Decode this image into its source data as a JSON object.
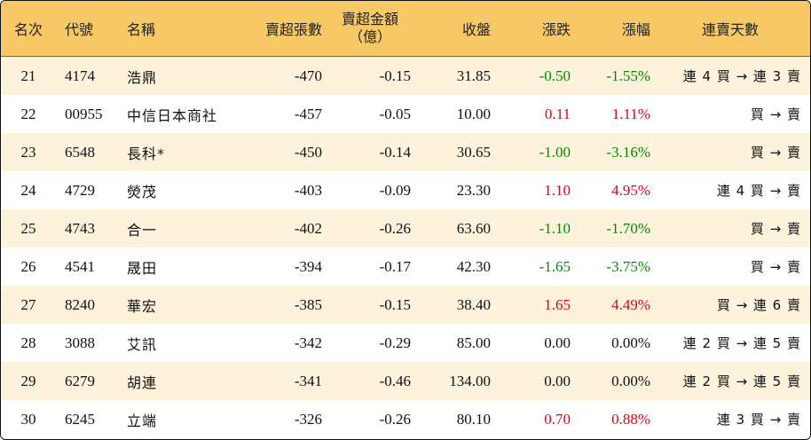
{
  "headers": {
    "rank": "名次",
    "code": "代號",
    "name": "名稱",
    "net_sell_lots": "賣超張數",
    "net_sell_amount_line1": "賣超金額",
    "net_sell_amount_line2": "（億）",
    "close": "收盤",
    "change": "漲跌",
    "change_pct": "漲幅",
    "streak": "連賣天數"
  },
  "colors": {
    "header_bg": "#f7c866",
    "stripe_bg": "#fdf3dd",
    "up": "#e0001b",
    "down": "#008a00"
  },
  "rows": [
    {
      "rank": "21",
      "code": "4174",
      "name": "浩鼎",
      "lots": "-470",
      "amount": "-0.15",
      "close": "31.85",
      "change": "-0.50",
      "pct": "-1.55%",
      "streak": "連 4 買 → 連 3 賣",
      "dir": "down"
    },
    {
      "rank": "22",
      "code": "00955",
      "name": "中信日本商社",
      "lots": "-457",
      "amount": "-0.05",
      "close": "10.00",
      "change": "0.11",
      "pct": "1.11%",
      "streak": "買 → 賣",
      "dir": "up"
    },
    {
      "rank": "23",
      "code": "6548",
      "name": "長科*",
      "lots": "-450",
      "amount": "-0.14",
      "close": "30.65",
      "change": "-1.00",
      "pct": "-3.16%",
      "streak": "買 → 賣",
      "dir": "down"
    },
    {
      "rank": "24",
      "code": "4729",
      "name": "熒茂",
      "lots": "-403",
      "amount": "-0.09",
      "close": "23.30",
      "change": "1.10",
      "pct": "4.95%",
      "streak": "連 4 買 → 賣",
      "dir": "up"
    },
    {
      "rank": "25",
      "code": "4743",
      "name": "合一",
      "lots": "-402",
      "amount": "-0.26",
      "close": "63.60",
      "change": "-1.10",
      "pct": "-1.70%",
      "streak": "買 → 賣",
      "dir": "down"
    },
    {
      "rank": "26",
      "code": "4541",
      "name": "晟田",
      "lots": "-394",
      "amount": "-0.17",
      "close": "42.30",
      "change": "-1.65",
      "pct": "-3.75%",
      "streak": "買 → 賣",
      "dir": "down"
    },
    {
      "rank": "27",
      "code": "8240",
      "name": "華宏",
      "lots": "-385",
      "amount": "-0.15",
      "close": "38.40",
      "change": "1.65",
      "pct": "4.49%",
      "streak": "買 → 連 6 賣",
      "dir": "up"
    },
    {
      "rank": "28",
      "code": "3088",
      "name": "艾訊",
      "lots": "-342",
      "amount": "-0.29",
      "close": "85.00",
      "change": "0.00",
      "pct": "0.00%",
      "streak": "連 2 買 → 連 5 賣",
      "dir": "flat"
    },
    {
      "rank": "29",
      "code": "6279",
      "name": "胡連",
      "lots": "-341",
      "amount": "-0.46",
      "close": "134.00",
      "change": "0.00",
      "pct": "0.00%",
      "streak": "連 2 買 → 連 5 賣",
      "dir": "flat"
    },
    {
      "rank": "30",
      "code": "6245",
      "name": "立端",
      "lots": "-326",
      "amount": "-0.26",
      "close": "80.10",
      "change": "0.70",
      "pct": "0.88%",
      "streak": "連 3 買 → 賣",
      "dir": "up"
    }
  ]
}
